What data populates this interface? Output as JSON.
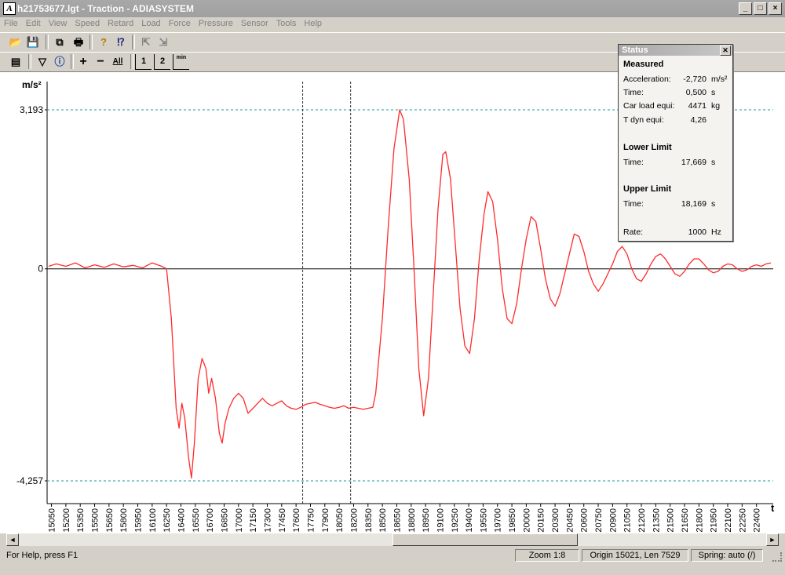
{
  "window": {
    "title": "h21753677.lgt - Traction - ADIASYSTEM",
    "minimize": "_",
    "maximize": "□",
    "close": "×"
  },
  "menu": [
    "File",
    "Edit",
    "View",
    "Speed",
    "Retard",
    "Load",
    "Force",
    "Pressure",
    "Sensor",
    "Tools",
    "Help"
  ],
  "toolbar1": [
    {
      "icon": "open-folder-icon",
      "glyph": "📂"
    },
    {
      "icon": "save-disk-icon",
      "glyph": "💾"
    },
    {
      "icon": "copy-icon",
      "glyph": "⧉"
    },
    {
      "icon": "print-icon",
      "glyph": "🖶"
    },
    {
      "icon": "help-question-icon",
      "glyph": "?"
    },
    {
      "icon": "context-help-icon",
      "glyph": "⁉"
    },
    {
      "icon": "import-icon",
      "glyph": "⇱"
    },
    {
      "icon": "export-icon",
      "glyph": "⇲"
    }
  ],
  "toolbar2": [
    {
      "icon": "properties-icon",
      "glyph": "▤"
    },
    {
      "icon": "filter-icon",
      "glyph": "▽"
    },
    {
      "icon": "info-icon",
      "glyph": "ⓘ"
    },
    {
      "icon": "zoom-in-plus-icon",
      "glyph": "+"
    },
    {
      "icon": "zoom-out-minus-icon",
      "glyph": "−"
    },
    {
      "icon": "zoom-all-icon",
      "glyph": "All"
    },
    {
      "icon": "marker-1-icon",
      "glyph": "1"
    },
    {
      "icon": "marker-2-icon",
      "glyph": "2"
    },
    {
      "icon": "minimum-icon",
      "glyph": "min"
    }
  ],
  "status_panel": {
    "title": "Status",
    "measured_heading": "Measured",
    "rows": [
      {
        "label": "Acceleration:",
        "value": "-2,720",
        "unit": "m/s²"
      },
      {
        "label": "Time:",
        "value": "0,500",
        "unit": "s"
      },
      {
        "label": "Car load equi:",
        "value": "4471",
        "unit": "kg"
      },
      {
        "label": "T dyn equi:",
        "value": "4,26",
        "unit": ""
      }
    ],
    "lower_heading": "Lower Limit",
    "lower": {
      "label": "Time:",
      "value": "17,669",
      "unit": "s"
    },
    "upper_heading": "Upper Limit",
    "upper": {
      "label": "Time:",
      "value": "18,169",
      "unit": "s"
    },
    "rate": {
      "label": "Rate:",
      "value": "1000",
      "unit": "Hz"
    }
  },
  "statusbar": {
    "help": "For Help, press F1",
    "zoom": "Zoom 1:8",
    "origin": "Origin 15021, Len 7529",
    "spring": "Spring: auto (/)"
  },
  "scrollbar": {
    "left_arrow": "◄",
    "right_arrow": "►"
  },
  "chart_data": {
    "type": "line",
    "title": "",
    "ylabel": "m/s²",
    "xlabel": "t",
    "y_ticks": [
      "3,193",
      "0",
      "-4,257"
    ],
    "ylim": [
      -4.257,
      3.193
    ],
    "xlim": [
      15021,
      22550
    ],
    "x_ticks": [
      15050,
      15200,
      15350,
      15500,
      15650,
      15800,
      15950,
      16100,
      16250,
      16400,
      16550,
      16700,
      16850,
      17000,
      17150,
      17300,
      17450,
      17600,
      17750,
      17900,
      18050,
      18200,
      18350,
      18500,
      18650,
      18800,
      18950,
      19100,
      19250,
      19400,
      19550,
      19700,
      19850,
      20000,
      20150,
      20300,
      20450,
      20600,
      20750,
      20900,
      21050,
      21200,
      21350,
      21500,
      21650,
      21800,
      21950,
      22100,
      22250,
      22400
    ],
    "limit_markers_x": [
      17669,
      18169
    ],
    "reference_lines_y": [
      3.193,
      -4.257
    ],
    "colors": {
      "series": "#ff2a2a",
      "limit": "#1a9a9a",
      "marker": "#333333"
    },
    "series": [
      {
        "values": [
          [
            15021,
            0.05
          ],
          [
            15100,
            0.1
          ],
          [
            15200,
            0.05
          ],
          [
            15300,
            0.12
          ],
          [
            15400,
            0.02
          ],
          [
            15500,
            0.08
          ],
          [
            15600,
            0.03
          ],
          [
            15700,
            0.1
          ],
          [
            15800,
            0.04
          ],
          [
            15900,
            0.07
          ],
          [
            16000,
            0.02
          ],
          [
            16100,
            0.12
          ],
          [
            16200,
            0.05
          ],
          [
            16250,
            0.0
          ],
          [
            16300,
            -1.0
          ],
          [
            16350,
            -2.8
          ],
          [
            16380,
            -3.2
          ],
          [
            16410,
            -2.7
          ],
          [
            16440,
            -3.0
          ],
          [
            16480,
            -3.8
          ],
          [
            16510,
            -4.2
          ],
          [
            16540,
            -3.5
          ],
          [
            16580,
            -2.2
          ],
          [
            16620,
            -1.8
          ],
          [
            16660,
            -2.0
          ],
          [
            16690,
            -2.5
          ],
          [
            16720,
            -2.2
          ],
          [
            16760,
            -2.6
          ],
          [
            16800,
            -3.3
          ],
          [
            16830,
            -3.5
          ],
          [
            16860,
            -3.1
          ],
          [
            16900,
            -2.8
          ],
          [
            16950,
            -2.6
          ],
          [
            17000,
            -2.5
          ],
          [
            17050,
            -2.6
          ],
          [
            17100,
            -2.9
          ],
          [
            17150,
            -2.8
          ],
          [
            17200,
            -2.7
          ],
          [
            17250,
            -2.6
          ],
          [
            17300,
            -2.7
          ],
          [
            17350,
            -2.75
          ],
          [
            17400,
            -2.7
          ],
          [
            17450,
            -2.65
          ],
          [
            17500,
            -2.75
          ],
          [
            17550,
            -2.8
          ],
          [
            17600,
            -2.82
          ],
          [
            17650,
            -2.78
          ],
          [
            17700,
            -2.72
          ],
          [
            17750,
            -2.7
          ],
          [
            17800,
            -2.68
          ],
          [
            17850,
            -2.72
          ],
          [
            17900,
            -2.75
          ],
          [
            17950,
            -2.78
          ],
          [
            18000,
            -2.8
          ],
          [
            18050,
            -2.78
          ],
          [
            18100,
            -2.75
          ],
          [
            18150,
            -2.8
          ],
          [
            18200,
            -2.78
          ],
          [
            18250,
            -2.8
          ],
          [
            18300,
            -2.82
          ],
          [
            18350,
            -2.8
          ],
          [
            18400,
            -2.78
          ],
          [
            18430,
            -2.5
          ],
          [
            18500,
            -1.0
          ],
          [
            18560,
            0.8
          ],
          [
            18620,
            2.4
          ],
          [
            18680,
            3.193
          ],
          [
            18720,
            3.0
          ],
          [
            18780,
            1.8
          ],
          [
            18830,
            0.0
          ],
          [
            18880,
            -2.0
          ],
          [
            18930,
            -2.95
          ],
          [
            18980,
            -2.2
          ],
          [
            19030,
            -0.5
          ],
          [
            19080,
            1.2
          ],
          [
            19130,
            2.3
          ],
          [
            19160,
            2.35
          ],
          [
            19210,
            1.8
          ],
          [
            19260,
            0.5
          ],
          [
            19310,
            -0.8
          ],
          [
            19360,
            -1.55
          ],
          [
            19410,
            -1.7
          ],
          [
            19460,
            -1.0
          ],
          [
            19510,
            0.2
          ],
          [
            19560,
            1.1
          ],
          [
            19600,
            1.55
          ],
          [
            19650,
            1.35
          ],
          [
            19700,
            0.6
          ],
          [
            19750,
            -0.4
          ],
          [
            19800,
            -1.0
          ],
          [
            19850,
            -1.1
          ],
          [
            19900,
            -0.7
          ],
          [
            19950,
            0.0
          ],
          [
            20000,
            0.6
          ],
          [
            20050,
            1.05
          ],
          [
            20100,
            0.95
          ],
          [
            20150,
            0.4
          ],
          [
            20200,
            -0.2
          ],
          [
            20250,
            -0.6
          ],
          [
            20300,
            -0.75
          ],
          [
            20350,
            -0.5
          ],
          [
            20400,
            -0.1
          ],
          [
            20450,
            0.3
          ],
          [
            20500,
            0.7
          ],
          [
            20550,
            0.65
          ],
          [
            20600,
            0.35
          ],
          [
            20650,
            -0.05
          ],
          [
            20700,
            -0.3
          ],
          [
            20750,
            -0.45
          ],
          [
            20800,
            -0.3
          ],
          [
            20850,
            -0.1
          ],
          [
            20900,
            0.1
          ],
          [
            20950,
            0.35
          ],
          [
            21000,
            0.45
          ],
          [
            21050,
            0.3
          ],
          [
            21100,
            0.0
          ],
          [
            21150,
            -0.2
          ],
          [
            21200,
            -0.25
          ],
          [
            21250,
            -0.1
          ],
          [
            21300,
            0.1
          ],
          [
            21350,
            0.25
          ],
          [
            21400,
            0.3
          ],
          [
            21450,
            0.2
          ],
          [
            21500,
            0.05
          ],
          [
            21550,
            -0.1
          ],
          [
            21600,
            -0.15
          ],
          [
            21650,
            -0.05
          ],
          [
            21700,
            0.1
          ],
          [
            21750,
            0.2
          ],
          [
            21800,
            0.2
          ],
          [
            21850,
            0.1
          ],
          [
            21900,
            -0.02
          ],
          [
            21950,
            -0.08
          ],
          [
            22000,
            -0.05
          ],
          [
            22050,
            0.05
          ],
          [
            22100,
            0.1
          ],
          [
            22150,
            0.08
          ],
          [
            22200,
            0.0
          ],
          [
            22250,
            -0.05
          ],
          [
            22300,
            -0.02
          ],
          [
            22350,
            0.05
          ],
          [
            22400,
            0.08
          ],
          [
            22450,
            0.05
          ],
          [
            22500,
            0.1
          ],
          [
            22550,
            0.12
          ]
        ]
      }
    ]
  }
}
